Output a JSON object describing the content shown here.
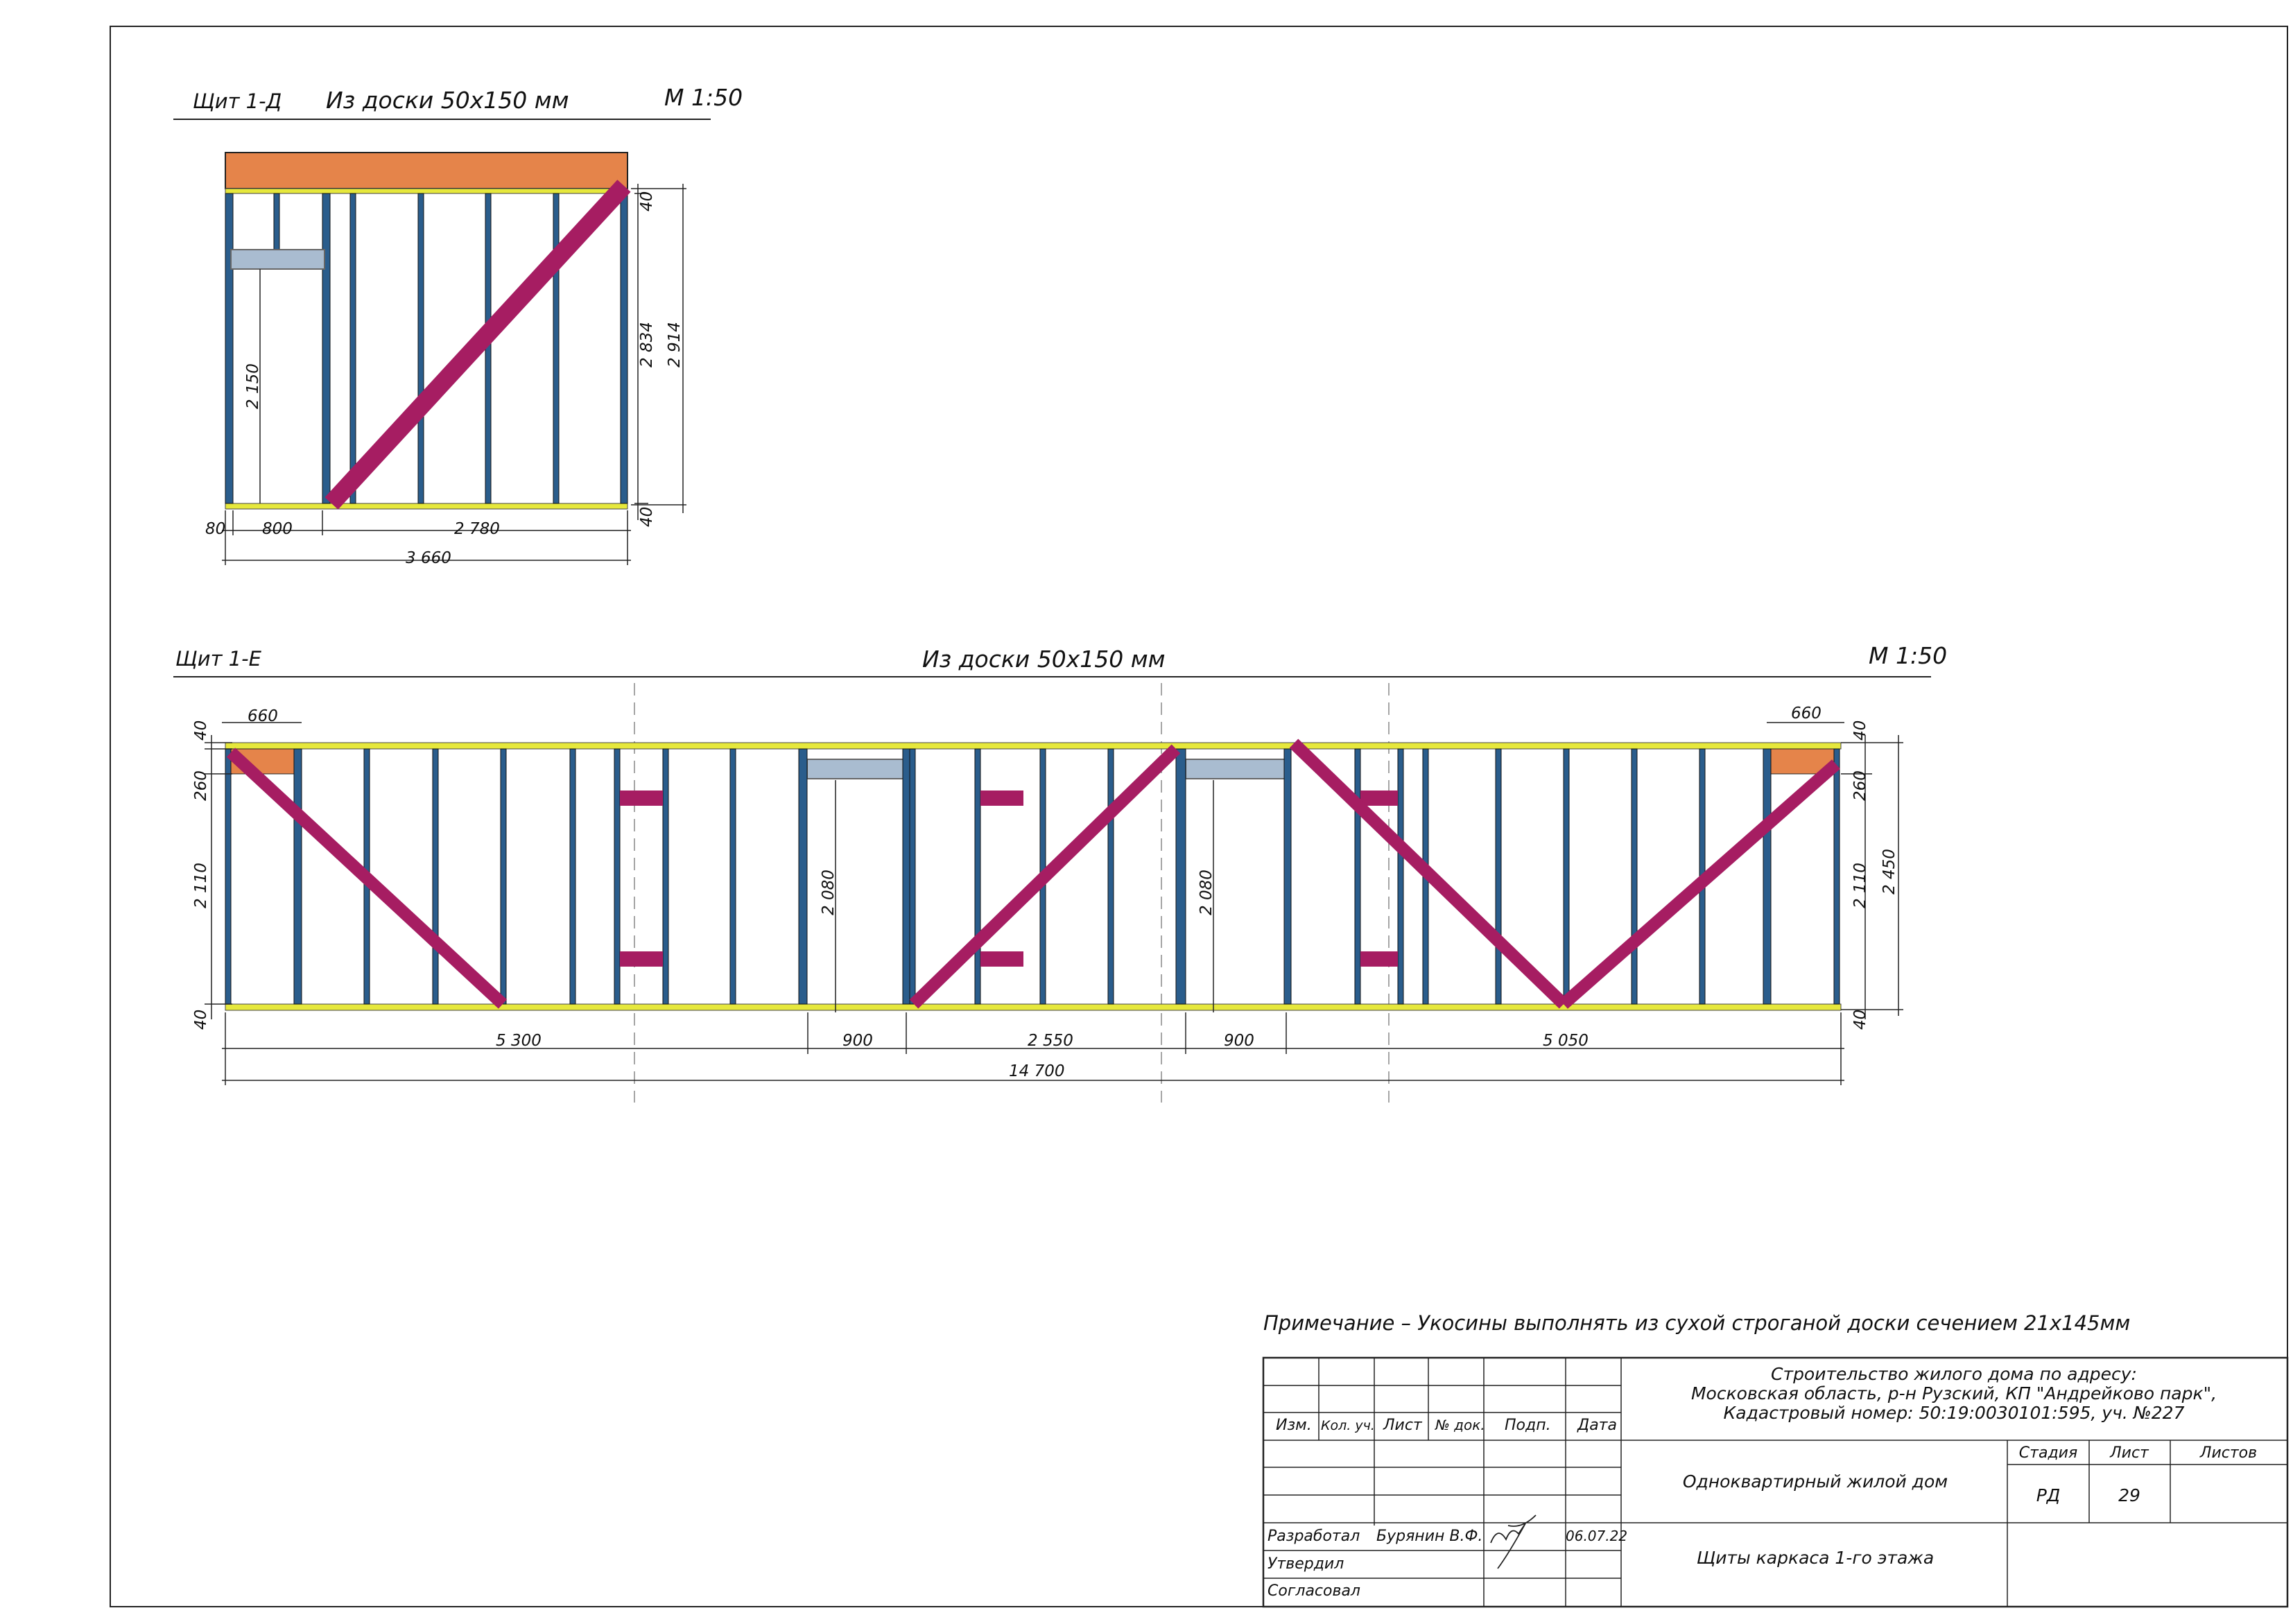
{
  "colors": {
    "stud": "#2a5d8c",
    "brace": "#a61d62",
    "plate": "#e6e83c",
    "top_block": "#e5844a",
    "lintel": "#a9bcd0",
    "line": "#222222"
  },
  "panel_d": {
    "title": "Щит 1-Д",
    "material": "Из доски 50х150 мм",
    "scale": "М 1:50",
    "dims": {
      "left_offset": "80",
      "opening_width": "800",
      "rest_width": "2 780",
      "total_width": "3 660",
      "opening_height": "2 150",
      "plate_top": "40",
      "plate_bottom": "40",
      "inner_height": "2 834",
      "total_height": "2 914"
    }
  },
  "panel_e": {
    "title": "Щит 1-Е",
    "material": "Из доски 50х150 мм",
    "scale": "М 1:50",
    "dims": {
      "left_block": "660",
      "right_block": "660",
      "seg1": "5 300",
      "door1": "900",
      "seg2": "2 550",
      "door2": "900",
      "seg3": "5 050",
      "total": "14 700",
      "left_top_plate": "40",
      "left_block_h": "260",
      "left_height": "2 110",
      "left_bottom_plate": "40",
      "door1_height": "2 080",
      "door2_height": "2 080",
      "right_top_plate": "40",
      "right_block_h": "260",
      "right_height": "2 110",
      "right_bottom_plate": "40",
      "total_height": "2 450"
    }
  },
  "note": "Примечание – Укосины выполнять из сухой строганой доски сечением 21х145мм",
  "title_block": {
    "project": [
      "Строительство жилого дома по адресу:",
      "Московская область, р-н Рузский, КП \"Андрейково парк\",",
      "Кадастровый номер: 50:19:0030101:595, уч. №227"
    ],
    "col_headers": [
      "Изм.",
      "Кол. уч.",
      "Лист",
      "№ док.",
      "Подп.",
      "Дата"
    ],
    "building": "Одноквартирный жилой дом",
    "sheet_title": "Щиты каркаса 1-го этажа",
    "stage_label": "Стадия",
    "sheet_label": "Лист",
    "sheets_label": "Листов",
    "stage": "РД",
    "sheet": "29",
    "sheets": "",
    "roles": [
      "Разработал",
      "Утвердил",
      "Согласовал"
    ],
    "developer": "Бурянин В.Ф.",
    "date": "06.07.22"
  }
}
